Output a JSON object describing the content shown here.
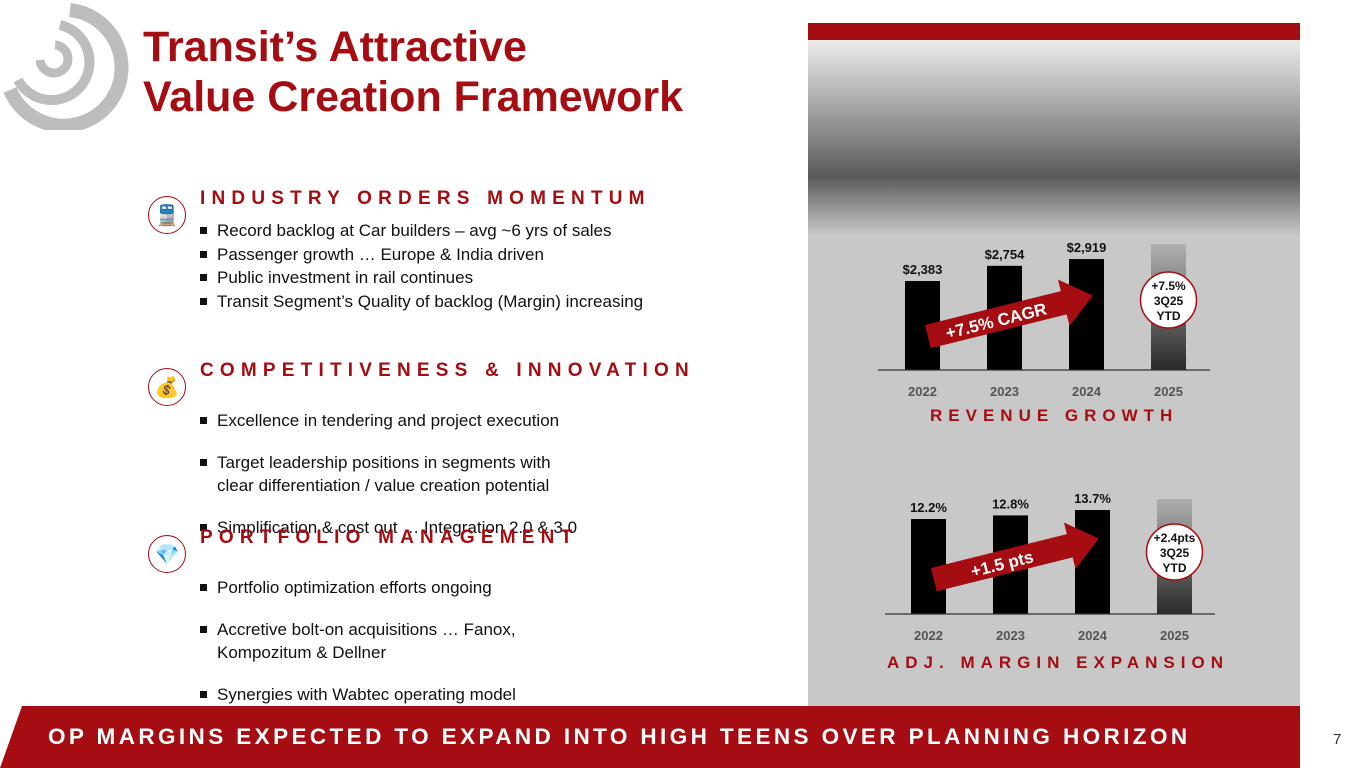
{
  "title_lines": [
    "Transit’s Attractive",
    "Value Creation Framework"
  ],
  "sections": [
    {
      "heading": "INDUSTRY ORDERS MOMENTUM",
      "icon": "train-icon",
      "bullets": [
        "Record backlog at Car builders – avg ~6 yrs of sales",
        "Passenger growth … Europe & India driven",
        "Public investment in rail continues",
        "Transit Segment’s Quality of backlog (Margin) increasing"
      ]
    },
    {
      "heading": "COMPETITIVENESS & INNOVATION",
      "icon": "coins-chart-icon",
      "bullets": [
        "Excellence in tendering and project execution",
        "Target leadership positions in segments with\nclear differentiation / value creation potential",
        "Simplification & cost out … Integration 2.0 & 3.0"
      ]
    },
    {
      "heading": "PORTFOLIO MANAGEMENT",
      "icon": "diamond-icon",
      "bullets": [
        "Portfolio optimization efforts ongoing",
        "Accretive bolt-on acquisitions … Fanox,\nKompozitum & Dellner",
        "Synergies with Wabtec operating model"
      ]
    }
  ],
  "chart_data": [
    {
      "type": "bar",
      "title": "REVENUE GROWTH",
      "categories": [
        "2022",
        "2023",
        "2024",
        "2025"
      ],
      "values": [
        2383,
        2754,
        2919,
        null
      ],
      "data_labels": [
        "$2,383",
        "$2,754",
        "$2,919",
        ""
      ],
      "arrow_label": "+7.5% CAGR",
      "callout": [
        "+7.5%",
        "3Q25",
        "YTD"
      ]
    },
    {
      "type": "bar",
      "title": "ADJ. MARGIN EXPANSION",
      "categories": [
        "2022",
        "2023",
        "2024",
        "2025"
      ],
      "values": [
        12.2,
        12.8,
        13.7,
        null
      ],
      "data_labels": [
        "12.2%",
        "12.8%",
        "13.7%",
        ""
      ],
      "arrow_label": "+1.5 pts",
      "callout": [
        "+2.4pts",
        "3Q25",
        "YTD"
      ]
    }
  ],
  "banner": "OP MARGINS EXPECTED TO EXPAND INTO HIGH TEENS OVER PLANNING HORIZON",
  "page_number": "7",
  "colors": {
    "brand_red": "#a50d12",
    "panel_gray": "#c8c8c8"
  }
}
